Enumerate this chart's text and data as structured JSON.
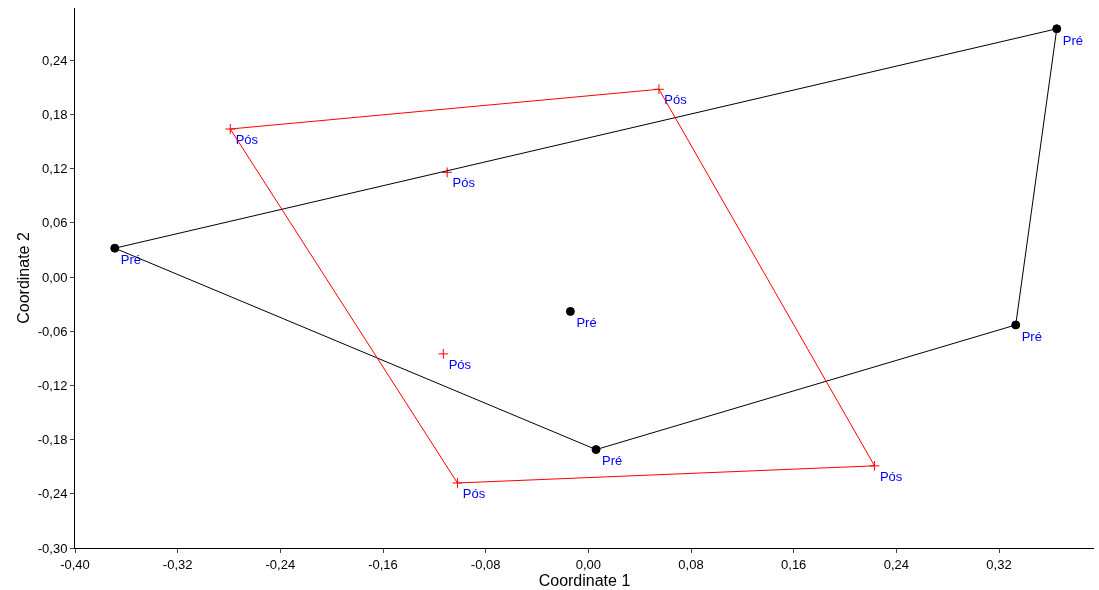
{
  "chart_data": {
    "type": "scatter",
    "xlabel": "Coordinate 1",
    "ylabel": "Coordinate 2",
    "xlim": [
      -0.4,
      0.394
    ],
    "ylim": [
      -0.3,
      0.298
    ],
    "xticks": [
      {
        "value": -0.4,
        "label": "-0,40"
      },
      {
        "value": -0.32,
        "label": "-0,32"
      },
      {
        "value": -0.24,
        "label": "-0,24"
      },
      {
        "value": -0.16,
        "label": "-0,16"
      },
      {
        "value": -0.08,
        "label": "-0,08"
      },
      {
        "value": 0.0,
        "label": "0,00"
      },
      {
        "value": 0.08,
        "label": "0,08"
      },
      {
        "value": 0.16,
        "label": "0,16"
      },
      {
        "value": 0.24,
        "label": "0,24"
      },
      {
        "value": 0.32,
        "label": "0,32"
      }
    ],
    "yticks": [
      {
        "value": -0.3,
        "label": "-0,30"
      },
      {
        "value": -0.24,
        "label": "-0,24"
      },
      {
        "value": -0.18,
        "label": "-0,18"
      },
      {
        "value": -0.12,
        "label": "-0,12"
      },
      {
        "value": -0.06,
        "label": "-0,06"
      },
      {
        "value": 0.0,
        "label": "0,00"
      },
      {
        "value": 0.06,
        "label": "0,06"
      },
      {
        "value": 0.12,
        "label": "0,12"
      },
      {
        "value": 0.18,
        "label": "0,18"
      },
      {
        "value": 0.24,
        "label": "0,24"
      }
    ],
    "series": [
      {
        "color": "#000000",
        "marker": "circle",
        "x": [
          -0.369,
          0.365,
          0.333,
          0.006,
          -0.014
        ],
        "values": [
          0.032,
          0.275,
          -0.053,
          -0.191,
          -0.038
        ],
        "value_labels": [
          "Pré",
          "Pré",
          "Pré",
          "Pré",
          "Pré"
        ]
      },
      {
        "color": "#ff0000",
        "marker": "cross",
        "x": [
          -0.279,
          0.055,
          -0.11,
          -0.113,
          -0.102,
          0.223
        ],
        "values": [
          0.164,
          0.208,
          0.116,
          -0.085,
          -0.228,
          -0.209
        ],
        "value_labels": [
          "Pós",
          "Pós",
          "Pós",
          "Pós",
          "Pós",
          "Pós"
        ]
      },
      {
        "type": "line",
        "color": "#000000",
        "x": [
          -0.369,
          0.365
        ],
        "values": [
          0.032,
          0.275
        ]
      },
      {
        "type": "line",
        "color": "#000000",
        "x": [
          0.333,
          0.365
        ],
        "values": [
          -0.053,
          0.275
        ]
      },
      {
        "type": "line",
        "color": "#000000",
        "x": [
          0.006,
          0.333
        ],
        "values": [
          -0.191,
          -0.053
        ]
      },
      {
        "type": "line",
        "color": "#000000",
        "x": [
          -0.369,
          0.006
        ],
        "values": [
          0.032,
          -0.191
        ]
      },
      {
        "type": "line",
        "color": "#ff0000",
        "x": [
          -0.279,
          0.055
        ],
        "values": [
          0.164,
          0.208
        ]
      },
      {
        "type": "line",
        "color": "#ff0000",
        "x": [
          0.055,
          0.223
        ],
        "values": [
          0.208,
          -0.209
        ]
      },
      {
        "type": "line",
        "color": "#ff0000",
        "x": [
          -0.102,
          0.223
        ],
        "values": [
          -0.228,
          -0.209
        ]
      },
      {
        "type": "line",
        "color": "#ff0000",
        "x": [
          -0.279,
          -0.102
        ],
        "values": [
          0.164,
          -0.228
        ]
      }
    ]
  }
}
